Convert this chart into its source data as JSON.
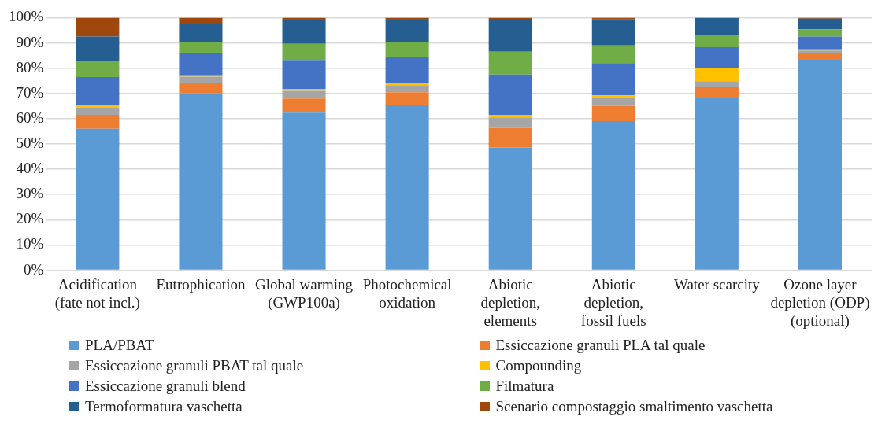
{
  "chart_data": {
    "type": "bar",
    "stacked": true,
    "categories": [
      "Acidification (fate not incl.)",
      "Eutrophication",
      "Global warming (GWP100a)",
      "Photochemical oxidation",
      "Abiotic depletion, elements",
      "Abiotic depletion, fossil fuels",
      "Water scarcity",
      "Ozone layer depletion (ODP) (optional)"
    ],
    "series": [
      {
        "name": "PLA/PBAT",
        "color": "#5b9bd5",
        "values": [
          56,
          70,
          62.4,
          65.3,
          48.6,
          59,
          68.3,
          83.3
        ]
      },
      {
        "name": "Essiccazione granuli PLA tal quale",
        "color": "#ed7d31",
        "values": [
          5.5,
          4.2,
          5.6,
          5.2,
          7.8,
          6,
          4.2,
          2.6
        ]
      },
      {
        "name": "Essiccazione granuli PBAT tal quale",
        "color": "#a5a5a5",
        "values": [
          3,
          2.4,
          3,
          2.8,
          4.1,
          3.3,
          2.3,
          1.1
        ]
      },
      {
        "name": "Compounding",
        "color": "#ffc000",
        "values": [
          0.8,
          0.6,
          0.8,
          0.8,
          1,
          0.9,
          5.2,
          0.4
        ]
      },
      {
        "name": "Essiccazione granuli blend",
        "color": "#4472c4",
        "values": [
          11.2,
          8.6,
          11.4,
          10.3,
          16,
          12.8,
          8.3,
          5.1
        ]
      },
      {
        "name": "Filmatura",
        "color": "#70ad47",
        "values": [
          6.5,
          4.7,
          6.4,
          6,
          9,
          7,
          4.7,
          2.9
        ]
      },
      {
        "name": "Termoformatura vaschetta",
        "color": "#255e91",
        "values": [
          9.5,
          7,
          9.6,
          8.8,
          13,
          10.3,
          7,
          4.2
        ]
      },
      {
        "name": "Scenario compostaggio smaltimento vaschetta",
        "color": "#9e480e",
        "values": [
          7.5,
          2.5,
          0.8,
          0.8,
          0.5,
          0.7,
          0,
          0.4
        ]
      }
    ],
    "ylim": [
      0,
      100
    ],
    "yticks": [
      {
        "value": 0,
        "label": "0%"
      },
      {
        "value": 10,
        "label": "10%"
      },
      {
        "value": 20,
        "label": "20%"
      },
      {
        "value": 30,
        "label": "30%"
      },
      {
        "value": 40,
        "label": "40%"
      },
      {
        "value": 50,
        "label": "50%"
      },
      {
        "value": 60,
        "label": "60%"
      },
      {
        "value": 70,
        "label": "70%"
      },
      {
        "value": 80,
        "label": "80%"
      },
      {
        "value": 90,
        "label": "90%"
      },
      {
        "value": 100,
        "label": "100%"
      }
    ],
    "grid": "y",
    "legend": "bottom"
  }
}
